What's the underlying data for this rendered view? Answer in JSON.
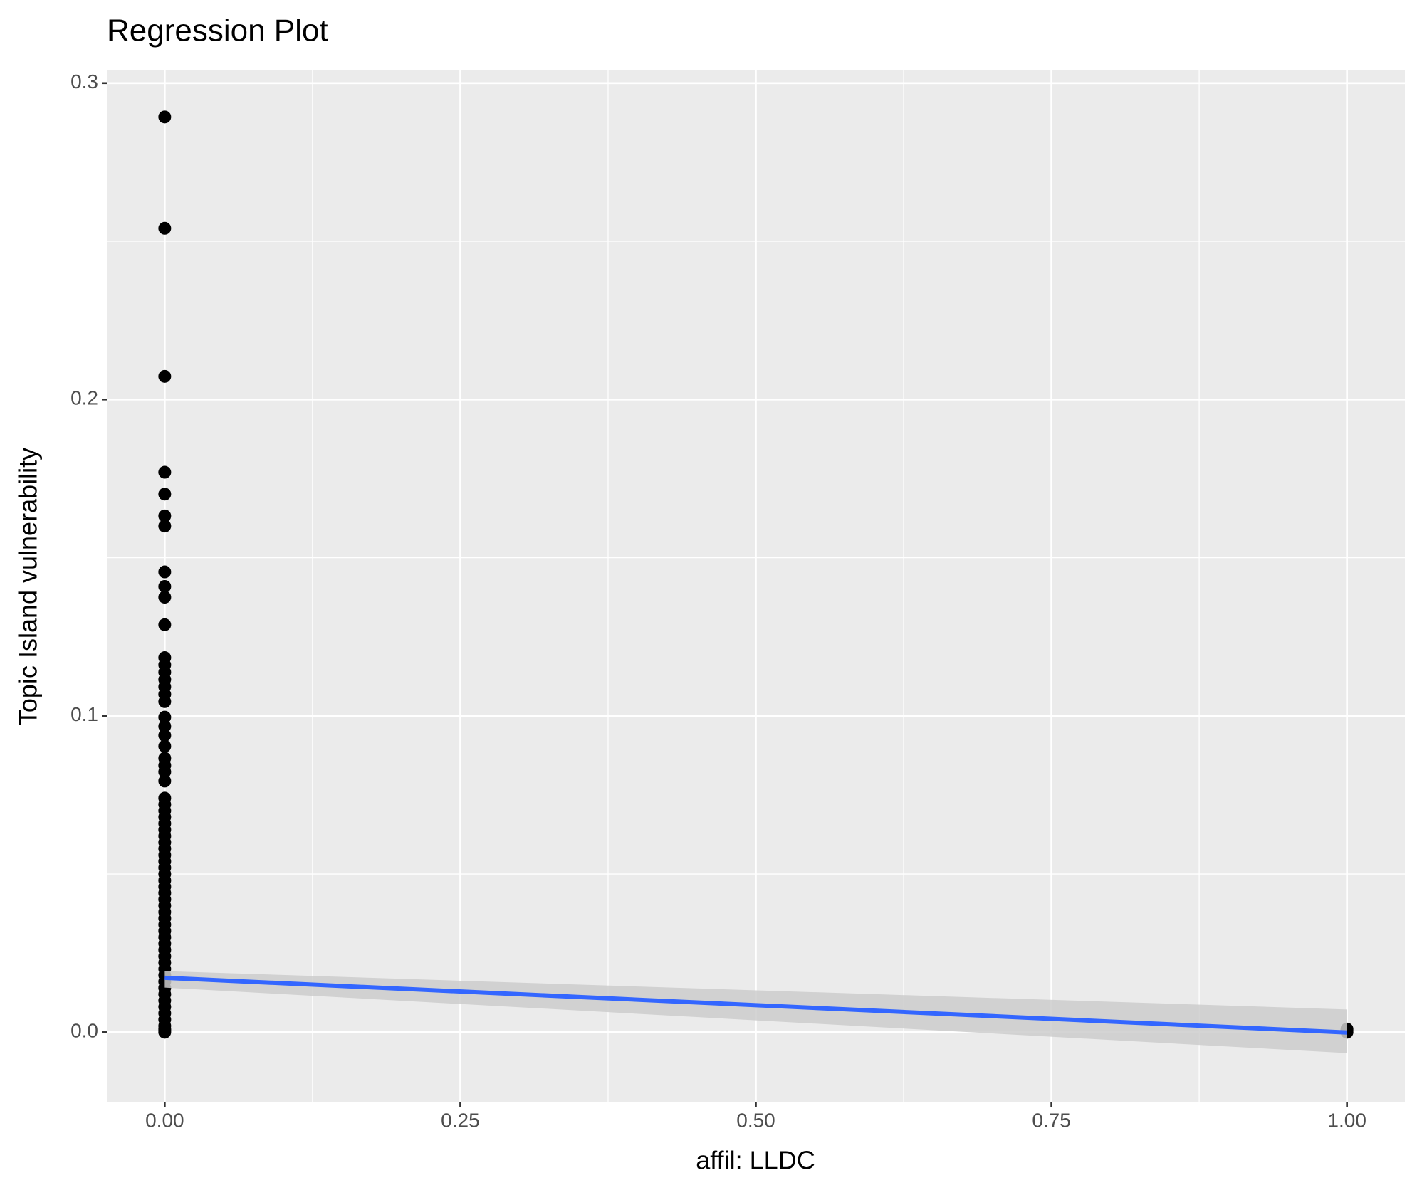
{
  "chart_data": {
    "type": "scatter",
    "title": "Regression Plot",
    "x_label": "affil: LLDC",
    "y_label": "Topic Island vulnerability",
    "points": {
      "color": "#000000",
      "x": [
        0,
        0,
        0,
        0,
        0,
        0,
        0,
        0,
        0,
        0,
        0,
        0,
        0,
        0,
        0,
        0,
        0,
        0,
        0,
        0,
        0,
        0,
        0,
        0,
        0,
        0,
        0,
        0,
        0,
        0,
        0,
        0,
        0,
        0,
        0,
        0,
        0,
        0,
        0,
        0,
        0,
        0,
        0,
        0,
        0,
        0,
        0,
        0,
        0,
        0,
        0,
        0,
        0,
        0,
        0,
        0,
        0,
        0,
        0,
        0,
        0,
        0,
        0,
        0,
        0,
        0,
        1,
        1,
        1
      ],
      "y": [
        0.2893,
        0.2541,
        0.2073,
        0.177,
        0.1701,
        0.1632,
        0.16,
        0.1455,
        0.1409,
        0.1375,
        0.1288,
        0.1184,
        0.1161,
        0.1138,
        0.1115,
        0.1092,
        0.1068,
        0.1045,
        0.0996,
        0.0967,
        0.0938,
        0.0904,
        0.0866,
        0.0843,
        0.0823,
        0.0794,
        0.074,
        0.072,
        0.07,
        0.068,
        0.066,
        0.064,
        0.062,
        0.06,
        0.058,
        0.056,
        0.054,
        0.052,
        0.05,
        0.048,
        0.046,
        0.044,
        0.042,
        0.04,
        0.038,
        0.036,
        0.034,
        0.032,
        0.03,
        0.028,
        0.026,
        0.024,
        0.022,
        0.02,
        0.018,
        0.016,
        0.014,
        0.012,
        0.01,
        0.008,
        0.006,
        0.004,
        0.002,
        0.001,
        0.0005,
        0,
        0.001,
        0.0005,
        0
      ]
    },
    "regression_line": {
      "color": "#3366ff",
      "x": [
        0,
        1
      ],
      "y": [
        0.0172,
        -0.0001
      ]
    },
    "confidence_band": {
      "color": "#cccccc",
      "x": [
        0,
        1
      ],
      "lower": [
        0.0141,
        -0.0066
      ],
      "upper": [
        0.0193,
        0.0072
      ]
    },
    "xlim": [
      -0.049,
      1.049
    ],
    "ylim": [
      -0.0222,
      0.304
    ],
    "xticks": [
      {
        "value": 0,
        "label": "0.00"
      },
      {
        "value": 0.25,
        "label": "0.25"
      },
      {
        "value": 0.5,
        "label": "0.50"
      },
      {
        "value": 0.75,
        "label": "0.75"
      },
      {
        "value": 1,
        "label": "1.00"
      }
    ],
    "yticks": [
      {
        "value": 0,
        "label": "0.0"
      },
      {
        "value": 0.1,
        "label": "0.1"
      },
      {
        "value": 0.2,
        "label": "0.2"
      },
      {
        "value": 0.3,
        "label": "0.3"
      }
    ],
    "x_minor_breaks": [
      0.125,
      0.375,
      0.625,
      0.875
    ],
    "y_minor_breaks": [
      0.05,
      0.15,
      0.25
    ],
    "grid": true,
    "panel_color": "#ebebeb"
  }
}
